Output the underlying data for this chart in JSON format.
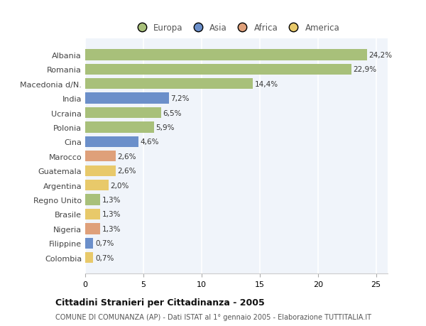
{
  "categories": [
    "Albania",
    "Romania",
    "Macedonia d/N.",
    "India",
    "Ucraina",
    "Polonia",
    "Cina",
    "Marocco",
    "Guatemala",
    "Argentina",
    "Regno Unito",
    "Brasile",
    "Nigeria",
    "Filippine",
    "Colombia"
  ],
  "values": [
    24.2,
    22.9,
    14.4,
    7.2,
    6.5,
    5.9,
    4.6,
    2.6,
    2.6,
    2.0,
    1.3,
    1.3,
    1.3,
    0.7,
    0.7
  ],
  "labels": [
    "24,2%",
    "22,9%",
    "14,4%",
    "7,2%",
    "6,5%",
    "5,9%",
    "4,6%",
    "2,6%",
    "2,6%",
    "2,0%",
    "1,3%",
    "1,3%",
    "1,3%",
    "0,7%",
    "0,7%"
  ],
  "colors": [
    "#a8c07a",
    "#a8c07a",
    "#a8c07a",
    "#6b8fca",
    "#a8c07a",
    "#a8c07a",
    "#6b8fca",
    "#dfa07a",
    "#e8c96a",
    "#e8c96a",
    "#a8c07a",
    "#e8c96a",
    "#dfa07a",
    "#6b8fca",
    "#e8c96a"
  ],
  "legend_labels": [
    "Europa",
    "Asia",
    "Africa",
    "America"
  ],
  "legend_colors": [
    "#a8c07a",
    "#6b8fca",
    "#dfa07a",
    "#e8c96a"
  ],
  "title": "Cittadini Stranieri per Cittadinanza - 2005",
  "subtitle": "COMUNE DI COMUNANZA (AP) - Dati ISTAT al 1° gennaio 2005 - Elaborazione TUTTITALIA.IT",
  "xlim": [
    0,
    26
  ],
  "xticks": [
    0,
    5,
    10,
    15,
    20,
    25
  ],
  "background_color": "#ffffff",
  "plot_bg_color": "#f0f4fa",
  "grid_color": "#ffffff"
}
